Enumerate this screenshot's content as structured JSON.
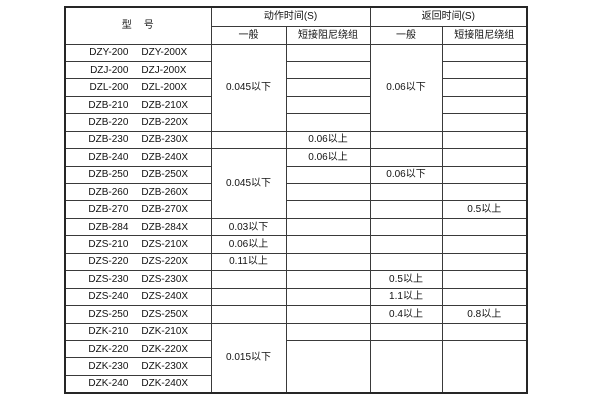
{
  "page": {
    "background_color": "#ffffff",
    "line_color": "#3a3a3a",
    "text_color": "#111111"
  },
  "table": {
    "header": {
      "model_label": "型　号",
      "groups": [
        {
          "label": "动作时间(S)",
          "sub": [
            "一般",
            "短接阻尼绕组"
          ]
        },
        {
          "label": "返回时间(S)",
          "sub": [
            "一般",
            "短接阻尼绕组"
          ]
        }
      ]
    },
    "rows": [
      {
        "models": [
          "DZY-200",
          "DZY-200X"
        ],
        "cells": [
          {
            "text": "0.045以下",
            "rowspan": 5
          },
          {
            "text": ""
          },
          {
            "text": "0.06以下",
            "rowspan": 5
          },
          {
            "text": ""
          }
        ]
      },
      {
        "models": [
          "DZJ-200",
          "DZJ-200X"
        ],
        "cells": [
          null,
          {
            "text": ""
          },
          null,
          {
            "text": ""
          }
        ]
      },
      {
        "models": [
          "DZL-200",
          "DZL-200X"
        ],
        "cells": [
          null,
          {
            "text": ""
          },
          null,
          {
            "text": ""
          }
        ]
      },
      {
        "models": [
          "DZB-210",
          "DZB-210X"
        ],
        "cells": [
          null,
          {
            "text": ""
          },
          null,
          {
            "text": ""
          }
        ]
      },
      {
        "models": [
          "DZB-220",
          "DZB-220X"
        ],
        "cells": [
          null,
          {
            "text": ""
          },
          null,
          {
            "text": ""
          }
        ]
      },
      {
        "models": [
          "DZB-230",
          "DZB-230X"
        ],
        "cells": [
          {
            "text": ""
          },
          {
            "text": "0.06以上"
          },
          {
            "text": ""
          },
          {
            "text": ""
          }
        ]
      },
      {
        "models": [
          "DZB-240",
          "DZB-240X"
        ],
        "cells": [
          {
            "text": "0.045以下",
            "rowspan": 4
          },
          {
            "text": "0.06以上"
          },
          {
            "text": ""
          },
          {
            "text": ""
          }
        ]
      },
      {
        "models": [
          "DZB-250",
          "DZB-250X"
        ],
        "cells": [
          null,
          {
            "text": ""
          },
          {
            "text": "0.06以下"
          },
          {
            "text": ""
          }
        ]
      },
      {
        "models": [
          "DZB-260",
          "DZB-260X"
        ],
        "cells": [
          null,
          {
            "text": ""
          },
          {
            "text": ""
          },
          {
            "text": ""
          }
        ]
      },
      {
        "models": [
          "DZB-270",
          "DZB-270X"
        ],
        "cells": [
          null,
          {
            "text": ""
          },
          {
            "text": ""
          },
          {
            "text": "0.5以上"
          }
        ]
      },
      {
        "models": [
          "DZB-284",
          "DZB-284X"
        ],
        "cells": [
          {
            "text": "0.03以下"
          },
          {
            "text": ""
          },
          {
            "text": ""
          },
          {
            "text": ""
          }
        ]
      },
      {
        "models": [
          "DZS-210",
          "DZS-210X"
        ],
        "cells": [
          {
            "text": "0.06以上"
          },
          {
            "text": ""
          },
          {
            "text": ""
          },
          {
            "text": ""
          }
        ]
      },
      {
        "models": [
          "DZS-220",
          "DZS-220X"
        ],
        "cells": [
          {
            "text": "0.11以上"
          },
          {
            "text": ""
          },
          {
            "text": ""
          },
          {
            "text": ""
          }
        ]
      },
      {
        "models": [
          "DZS-230",
          "DZS-230X"
        ],
        "cells": [
          {
            "text": ""
          },
          {
            "text": ""
          },
          {
            "text": "0.5以上"
          },
          {
            "text": ""
          }
        ]
      },
      {
        "models": [
          "DZS-240",
          "DZS-240X"
        ],
        "cells": [
          {
            "text": ""
          },
          {
            "text": ""
          },
          {
            "text": "1.1以上"
          },
          {
            "text": ""
          }
        ]
      },
      {
        "models": [
          "DZS-250",
          "DZS-250X"
        ],
        "cells": [
          {
            "text": ""
          },
          {
            "text": ""
          },
          {
            "text": "0.4以上"
          },
          {
            "text": "0.8以上"
          }
        ]
      },
      {
        "models": [
          "DZK-210",
          "DZK-210X"
        ],
        "cells": [
          {
            "text": "0.015以下",
            "rowspan": 4
          },
          {
            "text": ""
          },
          {
            "text": ""
          },
          {
            "text": ""
          }
        ]
      },
      {
        "models": [
          "DZK-220",
          "DZK-220X"
        ],
        "cells": [
          null,
          {
            "text": "",
            "rowspan": 3
          },
          {
            "text": "",
            "rowspan": 3
          },
          {
            "text": "",
            "rowspan": 3
          }
        ]
      },
      {
        "models": [
          "DZK-230",
          "DZK-230X"
        ],
        "cells": [
          null,
          null,
          null,
          null
        ]
      },
      {
        "models": [
          "DZK-240",
          "DZK-240X"
        ],
        "cells": [
          null,
          null,
          null,
          null
        ]
      }
    ]
  }
}
